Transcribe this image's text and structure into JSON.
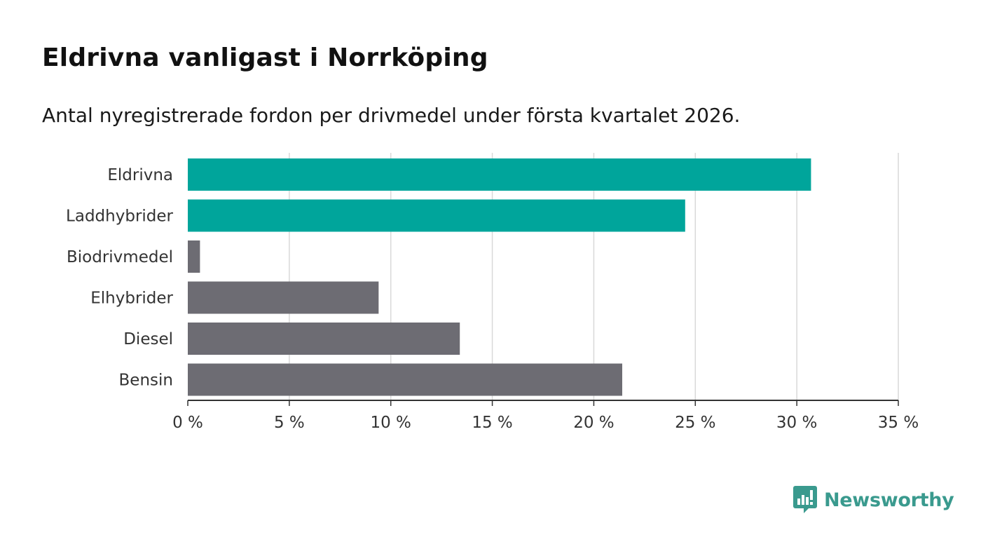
{
  "colors": {
    "highlight": "#00a59b",
    "neutral": "#6d6c73",
    "gridline": "#d9d9d9",
    "axis": "#333333",
    "brand": "#3a9a8e"
  },
  "brand": {
    "name": "Newsworthy",
    "icon": "bar-chart-speech-bubble-icon"
  },
  "chart_data": {
    "type": "bar",
    "orientation": "horizontal",
    "title": "Eldrivna vanligast i Norrköping",
    "subtitle": "Antal nyregistrerade fordon per drivmedel under första kvartalet 2026.",
    "xlabel": "",
    "ylabel": "",
    "unit": "%",
    "xlim": [
      0,
      35
    ],
    "ticks": [
      0,
      5,
      10,
      15,
      20,
      25,
      30,
      35
    ],
    "tick_labels": [
      "0 %",
      "5 %",
      "10 %",
      "15 %",
      "20 %",
      "25 %",
      "30 %",
      "35 %"
    ],
    "grid": true,
    "categories": [
      "Eldrivna",
      "Laddhybrider",
      "Biodrivmedel",
      "Elhybrider",
      "Diesel",
      "Bensin"
    ],
    "values": [
      30.7,
      24.5,
      0.6,
      9.4,
      13.4,
      21.4
    ],
    "highlighted": [
      true,
      true,
      false,
      false,
      false,
      false
    ]
  }
}
